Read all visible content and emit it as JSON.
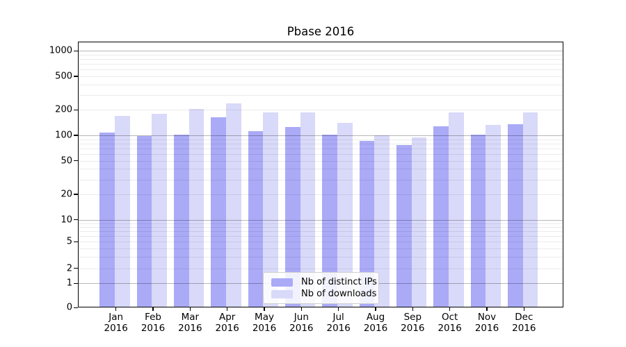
{
  "chart": {
    "title": "Pbase 2016"
  },
  "chart_data": {
    "type": "bar",
    "title": "Pbase 2016",
    "categories": [
      "Jan 2016",
      "Feb 2016",
      "Mar 2016",
      "Apr 2016",
      "May 2016",
      "Jun 2016",
      "Jul 2016",
      "Aug 2016",
      "Sep 2016",
      "Oct 2016",
      "Nov 2016",
      "Dec 2016"
    ],
    "series": [
      {
        "key": "ips",
        "name": "Nb of distinct IPs",
        "color": "#aaaaf7",
        "values": [
          108,
          98,
          102,
          165,
          112,
          126,
          101,
          86,
          77,
          127,
          102,
          135
        ]
      },
      {
        "key": "downloads",
        "name": "Nb of downloads",
        "color": "#d9d9f9",
        "values": [
          169,
          181,
          205,
          241,
          185,
          185,
          140,
          100,
          95,
          186,
          132,
          188
        ]
      }
    ],
    "yscale": "symlog",
    "yticks": [
      0,
      1,
      2,
      5,
      10,
      20,
      50,
      100,
      200,
      500,
      1000
    ],
    "ylim": [
      0,
      1100
    ],
    "grid": true,
    "legend_position": "lower-center"
  }
}
